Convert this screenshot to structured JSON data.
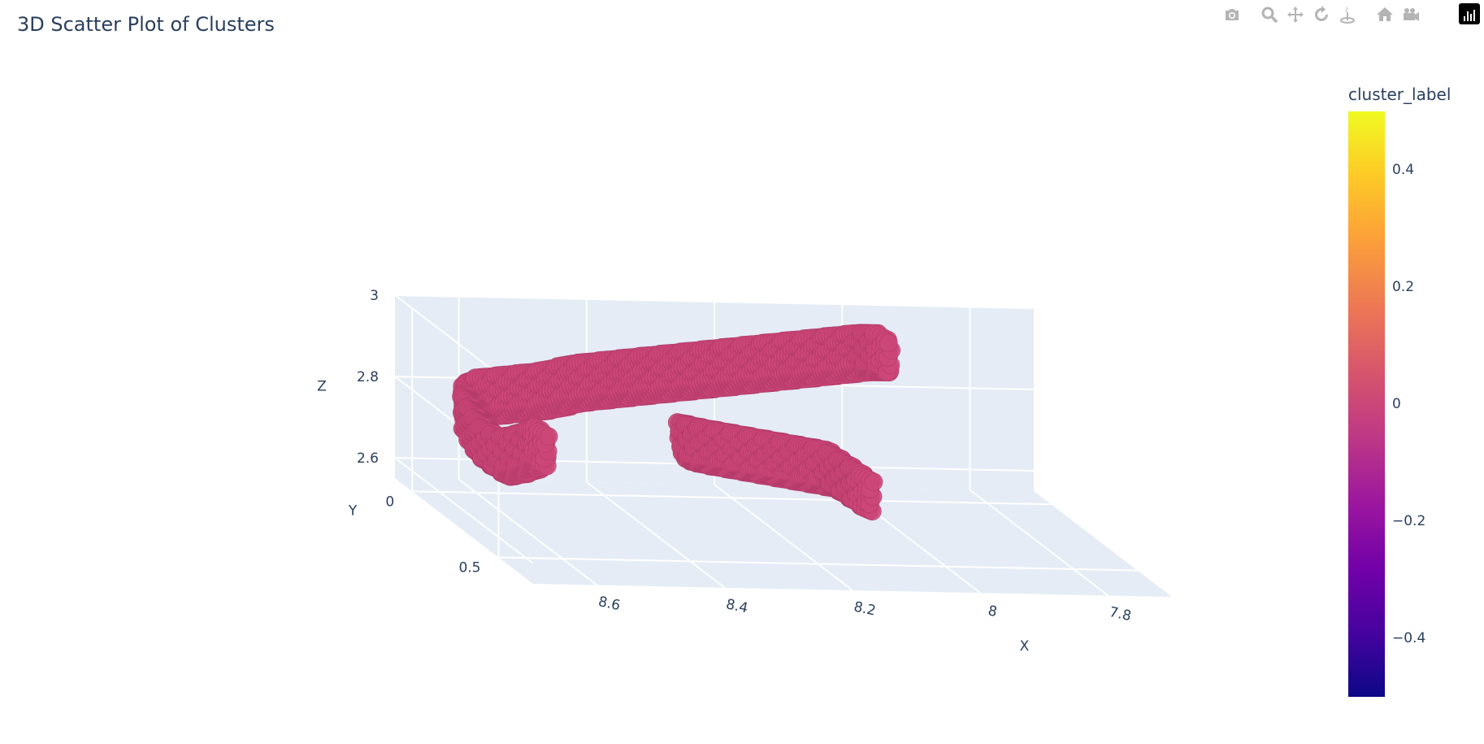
{
  "title": "3D Scatter Plot of Clusters",
  "modebar": [
    {
      "icon": "camera-icon",
      "name": "download-png-button"
    },
    {
      "icon": "zoom-icon",
      "name": "zoom-button"
    },
    {
      "icon": "pan-icon",
      "name": "pan-button"
    },
    {
      "icon": "orbit-rotate-icon",
      "name": "orbit-button"
    },
    {
      "icon": "turntable-icon",
      "name": "turntable-button"
    },
    {
      "icon": "home-icon",
      "name": "reset-view-button"
    },
    {
      "icon": "camera-video-icon",
      "name": "save-view-button"
    }
  ],
  "colorbar": {
    "title": "cluster_label",
    "ticks": [
      "0.4",
      "0.2",
      "0",
      "−0.2",
      "−0.4"
    ],
    "tick_values": [
      0.4,
      0.2,
      0,
      -0.2,
      -0.4
    ],
    "range": [
      -0.5,
      0.5
    ]
  },
  "chart_data": {
    "type": "scatter",
    "dimension": "3d",
    "title": "3D Scatter Plot of Clusters",
    "xlabel": "X",
    "ylabel": "Y",
    "zlabel": "Z",
    "x_ticks": [
      "7.8",
      "8",
      "8.2",
      "8.4",
      "8.6"
    ],
    "y_ticks": [
      "0",
      "0.5"
    ],
    "z_ticks": [
      "2.6",
      "2.8",
      "3"
    ],
    "xlim": [
      7.7,
      8.7
    ],
    "ylim": [
      -0.1,
      0.7
    ],
    "zlim": [
      2.55,
      3.0
    ],
    "grid": true,
    "marker_color": "#cc4778",
    "color_by": "cluster_label",
    "cluster_label_values": [
      0
    ],
    "series": [
      {
        "note_shape": "main band",
        "points_x": [
          8.62,
          8.6,
          8.55,
          8.5,
          8.45,
          8.4,
          8.35,
          8.3,
          8.25,
          8.2,
          8.15,
          8.1,
          8.05,
          8.0,
          7.97
        ],
        "points_y": [
          0.05,
          0.05,
          0.05,
          0.05,
          0.05,
          0.05,
          0.05,
          0.05,
          0.05,
          0.05,
          0.05,
          0.05,
          0.05,
          0.05,
          0.05
        ],
        "points_z": [
          2.78,
          2.8,
          2.81,
          2.82,
          2.84,
          2.85,
          2.86,
          2.87,
          2.88,
          2.89,
          2.9,
          2.91,
          2.92,
          2.93,
          2.93
        ]
      },
      {
        "note_shape": "left hook",
        "points_x": [
          8.62,
          8.61,
          8.6,
          8.58,
          8.55,
          8.52
        ],
        "points_y": [
          0.05,
          0.06,
          0.08,
          0.1,
          0.1,
          0.1
        ],
        "points_z": [
          2.76,
          2.72,
          2.69,
          2.67,
          2.68,
          2.7
        ]
      },
      {
        "note_shape": "lower band",
        "points_x": [
          8.35,
          8.32,
          8.28,
          8.24,
          8.2,
          8.16,
          8.12,
          8.1,
          8.08
        ],
        "points_y": [
          0.3,
          0.3,
          0.3,
          0.3,
          0.3,
          0.3,
          0.3,
          0.32,
          0.35
        ],
        "points_z": [
          2.78,
          2.77,
          2.76,
          2.75,
          2.74,
          2.73,
          2.72,
          2.7,
          2.68
        ]
      }
    ]
  }
}
